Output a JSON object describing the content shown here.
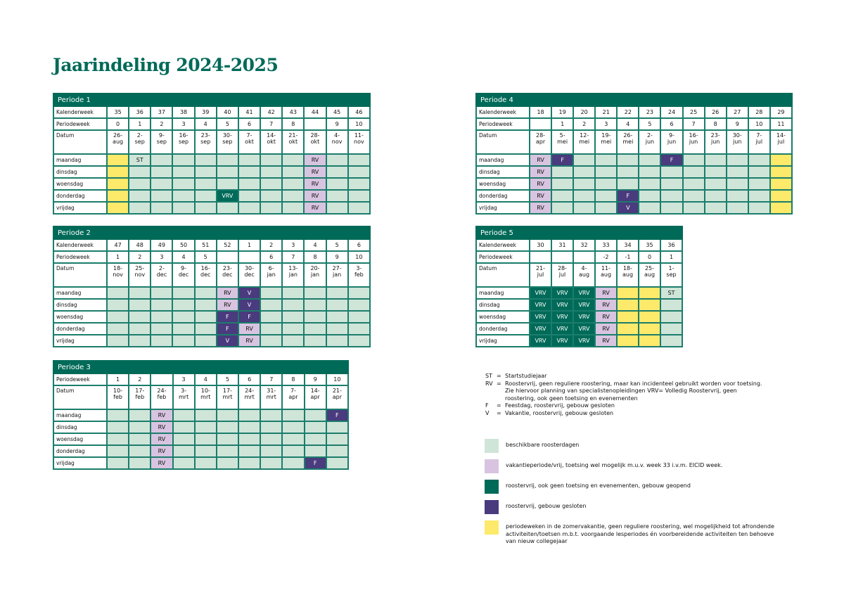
{
  "title": "Jaarindeling 2024-2025",
  "colors": {
    "available": "#cfe5d8",
    "summer_period": "#fde96a",
    "holiday_rv": "#d8c4e0",
    "vrv": "#006a58",
    "closed": "#4a3a7e"
  },
  "periods": [
    {
      "id": "p1",
      "title": "Periode 1",
      "rows": [
        {
          "label": "Kalenderweek",
          "cells": [
            "35",
            "36",
            "37",
            "38",
            "39",
            "40",
            "41",
            "42",
            "43",
            "44",
            "45",
            "46"
          ]
        },
        {
          "label": "Periodeweek",
          "cells": [
            "0",
            "1",
            "2",
            "3",
            "4",
            "5",
            "6",
            "7",
            "8",
            "",
            "9",
            "10"
          ]
        },
        {
          "label": "Datum",
          "date": true,
          "cells": [
            "26-\naug",
            "2-\nsep",
            "9-\nsep",
            "16-\nsep",
            "23-\nsep",
            "30-\nsep",
            "7-\nokt",
            "14-\nokt",
            "21-\nokt",
            "28-\nokt",
            "4-\nnov",
            "11-\nnov"
          ]
        }
      ],
      "days": [
        {
          "label": "maandag",
          "cells": [
            "y",
            "g:ST",
            "g",
            "g",
            "g",
            "g",
            "g",
            "g",
            "g",
            "l:RV",
            "g",
            "g"
          ]
        },
        {
          "label": "dinsdag",
          "cells": [
            "y",
            "g",
            "g",
            "g",
            "g",
            "g",
            "g",
            "g",
            "g",
            "l:RV",
            "g",
            "g"
          ]
        },
        {
          "label": "woensdag",
          "cells": [
            "y",
            "g",
            "g",
            "g",
            "g",
            "g",
            "g",
            "g",
            "g",
            "l:RV",
            "g",
            "g"
          ]
        },
        {
          "label": "donderdag",
          "cells": [
            "y",
            "g",
            "g",
            "g",
            "g",
            "d:VRV",
            "g",
            "g",
            "g",
            "l:RV",
            "g",
            "g"
          ]
        },
        {
          "label": "vrijdag",
          "cells": [
            "y",
            "g",
            "g",
            "g",
            "g",
            "g",
            "g",
            "g",
            "g",
            "l:RV",
            "g",
            "g"
          ]
        }
      ]
    },
    {
      "id": "p2",
      "title": "Periode 2",
      "rows": [
        {
          "label": "Kalenderweek",
          "cells": [
            "47",
            "48",
            "49",
            "50",
            "51",
            "52",
            "1",
            "2",
            "3",
            "4",
            "5",
            "6"
          ]
        },
        {
          "label": "Periodeweek",
          "cells": [
            "1",
            "2",
            "3",
            "4",
            "5",
            "",
            "",
            "6",
            "7",
            "8",
            "9",
            "10"
          ]
        },
        {
          "label": "Datum",
          "date": true,
          "cells": [
            "18-\nnov",
            "25-\nnov",
            "2-\ndec",
            "9-\ndec",
            "16-\ndec",
            "23-\ndec",
            "30-\ndec",
            "6-\njan",
            "13-\njan",
            "20-\njan",
            "27-\njan",
            "3-\nfeb"
          ]
        }
      ],
      "days": [
        {
          "label": "maandag",
          "cells": [
            "g",
            "g",
            "g",
            "g",
            "g",
            "l:RV",
            "p:V",
            "g",
            "g",
            "g",
            "g",
            "g"
          ]
        },
        {
          "label": "dinsdag",
          "cells": [
            "g",
            "g",
            "g",
            "g",
            "g",
            "l:RV",
            "p:V",
            "g",
            "g",
            "g",
            "g",
            "g"
          ]
        },
        {
          "label": "woensdag",
          "cells": [
            "g",
            "g",
            "g",
            "g",
            "g",
            "p:F",
            "p:F",
            "g",
            "g",
            "g",
            "g",
            "g"
          ]
        },
        {
          "label": "donderdag",
          "cells": [
            "g",
            "g",
            "g",
            "g",
            "g",
            "p:F",
            "l:RV",
            "g",
            "g",
            "g",
            "g",
            "g"
          ]
        },
        {
          "label": "vrijdag",
          "cells": [
            "g",
            "g",
            "g",
            "g",
            "g",
            "p:V",
            "l:RV",
            "g",
            "g",
            "g",
            "g",
            "g"
          ]
        }
      ]
    },
    {
      "id": "p3",
      "title": "Periode 3",
      "rows": [
        {
          "label": "Periodeweek",
          "cells": [
            "1",
            "2",
            "",
            "3",
            "4",
            "5",
            "6",
            "7",
            "8",
            "9",
            "10"
          ]
        },
        {
          "label": "Datum",
          "date": true,
          "cells": [
            "10-\nfeb",
            "17-\nfeb",
            "24-\nfeb",
            "3-\nmrt",
            "10-\nmrt",
            "17-\nmrt",
            "24-\nmrt",
            "31-\nmrt",
            "7-\napr",
            "14-\napr",
            "21-\napr"
          ]
        }
      ],
      "days": [
        {
          "label": "maandag",
          "cells": [
            "g",
            "g",
            "l:RV",
            "g",
            "g",
            "g",
            "g",
            "g",
            "g",
            "g",
            "p:F"
          ]
        },
        {
          "label": "dinsdag",
          "cells": [
            "g",
            "g",
            "l:RV",
            "g",
            "g",
            "g",
            "g",
            "g",
            "g",
            "g",
            "g"
          ]
        },
        {
          "label": "woensdag",
          "cells": [
            "g",
            "g",
            "l:RV",
            "g",
            "g",
            "g",
            "g",
            "g",
            "g",
            "g",
            "g"
          ]
        },
        {
          "label": "donderdag",
          "cells": [
            "g",
            "g",
            "l:RV",
            "g",
            "g",
            "g",
            "g",
            "g",
            "g",
            "g",
            "g"
          ]
        },
        {
          "label": "vrijdag",
          "cells": [
            "g",
            "g",
            "l:RV",
            "g",
            "g",
            "g",
            "g",
            "g",
            "g",
            "p:F",
            "g"
          ]
        }
      ]
    },
    {
      "id": "p4",
      "title": "Periode 4",
      "rows": [
        {
          "label": "Kalenderweek",
          "cells": [
            "18",
            "19",
            "20",
            "21",
            "22",
            "23",
            "24",
            "25",
            "26",
            "27",
            "28",
            "29"
          ]
        },
        {
          "label": "Periodeweek",
          "cells": [
            "",
            "1",
            "2",
            "3",
            "4",
            "5",
            "6",
            "7",
            "8",
            "9",
            "10",
            "11"
          ]
        },
        {
          "label": "Datum",
          "date": true,
          "cells": [
            "28-\napr",
            "5-\nmei",
            "12-\nmei",
            "19-\nmei",
            "26-\nmei",
            "2-\njun",
            "9-\njun",
            "16-\njun",
            "23-\njun",
            "30-\njun",
            "7-\njul",
            "14-\njul"
          ]
        }
      ],
      "days": [
        {
          "label": "maandag",
          "cells": [
            "l:RV",
            "p:F",
            "g",
            "g",
            "g",
            "g",
            "p:F",
            "g",
            "g",
            "g",
            "g",
            "y"
          ]
        },
        {
          "label": "dinsdag",
          "cells": [
            "l:RV",
            "g",
            "g",
            "g",
            "g",
            "g",
            "g",
            "g",
            "g",
            "g",
            "g",
            "y"
          ]
        },
        {
          "label": "woensdag",
          "cells": [
            "l:RV",
            "g",
            "g",
            "g",
            "g",
            "g",
            "g",
            "g",
            "g",
            "g",
            "g",
            "y"
          ]
        },
        {
          "label": "donderdag",
          "cells": [
            "l:RV",
            "g",
            "g",
            "g",
            "p:F",
            "g",
            "g",
            "g",
            "g",
            "g",
            "g",
            "y"
          ]
        },
        {
          "label": "vrijdag",
          "cells": [
            "l:RV",
            "g",
            "g",
            "g",
            "p:V",
            "g",
            "g",
            "g",
            "g",
            "g",
            "g",
            "y"
          ]
        }
      ]
    },
    {
      "id": "p5",
      "title": "Periode 5",
      "rows": [
        {
          "label": "Kalenderweek",
          "cells": [
            "30",
            "31",
            "32",
            "33",
            "34",
            "35",
            "36"
          ]
        },
        {
          "label": "Periodeweek",
          "cells": [
            "",
            "",
            "",
            "-2",
            "-1",
            "0",
            "1"
          ]
        },
        {
          "label": "Datum",
          "date": true,
          "cells": [
            "21-\njul",
            "28-\njul",
            "4-\naug",
            "11-\naug",
            "18-\naug",
            "25-\naug",
            "1-\nsep"
          ]
        }
      ],
      "days": [
        {
          "label": "maandag",
          "cells": [
            "d:VRV",
            "d:VRV",
            "d:VRV",
            "l:RV",
            "y",
            "y",
            "g:ST"
          ]
        },
        {
          "label": "dinsdag",
          "cells": [
            "d:VRV",
            "d:VRV",
            "d:VRV",
            "l:RV",
            "y",
            "y",
            "g"
          ]
        },
        {
          "label": "woensdag",
          "cells": [
            "d:VRV",
            "d:VRV",
            "d:VRV",
            "l:RV",
            "y",
            "y",
            "g"
          ]
        },
        {
          "label": "donderdag",
          "cells": [
            "d:VRV",
            "d:VRV",
            "d:VRV",
            "l:RV",
            "y",
            "y",
            "g"
          ]
        },
        {
          "label": "vrijdag",
          "cells": [
            "d:VRV",
            "d:VRV",
            "d:VRV",
            "l:RV",
            "y",
            "y",
            "g"
          ]
        }
      ]
    }
  ],
  "abbreviations": [
    {
      "key": "ST",
      "sep": "=",
      "text": "Startstudiejaar"
    },
    {
      "key": "RV",
      "sep": "=",
      "text": "Roostervrij, geen reguliere roostering, maar kan incidenteel gebruikt worden voor toetsing. Zie hiervoor planning van specialistenopleidingen VRV= Volledig Roostervrij, geen roostering, ook geen toetsing en evenementen"
    },
    {
      "key": "F",
      "sep": "=",
      "text": "Feestdag, roostervrij, gebouw gesloten"
    },
    {
      "key": "V",
      "sep": "=",
      "text": "Vakantie, roostervrij, gebouw gesloten"
    }
  ],
  "legend": [
    {
      "color": "#cfe5d8",
      "text": "beschikbare roosterdagen"
    },
    {
      "color": "#d8c4e0",
      "text": "vakantieperiode/vrij, toetsing wel mogelijk m.u.v. week 33 i.v.m. EICID week."
    },
    {
      "color": "#006a58",
      "text": "roostervrij, ook geen toetsing en evenementen, gebouw geopend"
    },
    {
      "color": "#4a3a7e",
      "text": "roostervrij, gebouw gesloten"
    },
    {
      "color": "#fde96a",
      "text": "periodeweken in de zomervakantie, geen reguliere roostering, wel mogelijkheid tot afrondende activiteiten/toetsen m.b.t. voorgaande lesperiodes én voorbereidende activiteiten ten behoeve van nieuw collegejaar"
    }
  ]
}
